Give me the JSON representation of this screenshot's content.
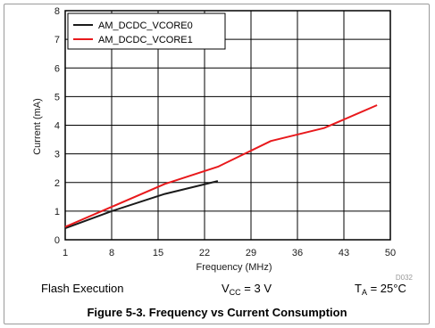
{
  "chart_data": {
    "type": "line",
    "title": "",
    "xlabel": "Frequency (MHz)",
    "ylabel": "Current (mA)",
    "xlim": [
      1,
      50
    ],
    "ylim": [
      0,
      8
    ],
    "x_ticks": [
      1,
      8,
      15,
      22,
      29,
      36,
      43,
      50
    ],
    "y_ticks": [
      0,
      1,
      2,
      3,
      4,
      5,
      6,
      7,
      8
    ],
    "grid": true,
    "legend_position": "top-left",
    "series": [
      {
        "name": "AM_DCDC_VCORE0",
        "color": "#1a1a1a",
        "x": [
          1,
          8,
          16,
          24
        ],
        "y": [
          0.4,
          1.0,
          1.6,
          2.05
        ]
      },
      {
        "name": "AM_DCDC_VCORE1",
        "color": "#e8191c",
        "x": [
          1,
          8,
          16,
          24,
          32,
          40,
          48
        ],
        "y": [
          0.45,
          1.15,
          1.95,
          2.55,
          3.45,
          3.9,
          4.7
        ]
      }
    ]
  },
  "figure": {
    "id_text": "D032",
    "condition_left": "Flash Execution",
    "condition_mid_main": "V",
    "condition_mid_sub": "CC",
    "condition_mid_rest": " = 3 V",
    "condition_right_main": "T",
    "condition_right_sub": "A",
    "condition_right_rest": " = 25°C",
    "caption": "Figure 5-3. Frequency vs Current Consumption"
  }
}
